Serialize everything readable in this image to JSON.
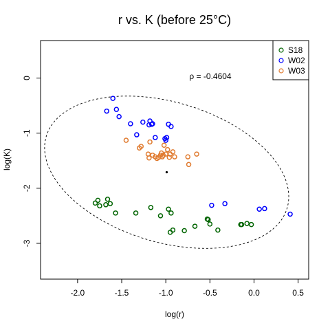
{
  "chart_data": {
    "type": "scatter",
    "title": "r vs. K (before 25°C)",
    "xlabel": "log(r)",
    "ylabel": "log(K)",
    "xlim": [
      -2.42,
      0.62
    ],
    "ylim": [
      -3.65,
      0.68
    ],
    "xticks": [
      -2.0,
      -1.5,
      -1.0,
      -0.5,
      0.0,
      0.5
    ],
    "xtick_labels": [
      "-2.0",
      "-1.5",
      "-1.0",
      "-0.5",
      "0.0",
      "0.5"
    ],
    "yticks": [
      0,
      -1,
      -2,
      -3
    ],
    "ytick_labels": [
      "0",
      "-1",
      "-2",
      "-3"
    ],
    "grid": false,
    "legend": {
      "placement": "top-right"
    },
    "annotation": "ρ = -0.4604",
    "centroid": {
      "x": -0.99,
      "y": -1.71
    },
    "ellipse": {
      "center": [
        -0.99,
        -1.71
      ],
      "semi_axes": [
        1.59,
        1.14
      ],
      "rotation_deg": -44.9
    },
    "series": [
      {
        "name": "S18",
        "color": "#006400",
        "points": [
          [
            -1.8,
            -2.27
          ],
          [
            -1.77,
            -2.22
          ],
          [
            -1.75,
            -2.32
          ],
          [
            -1.68,
            -2.3
          ],
          [
            -1.66,
            -2.2
          ],
          [
            -1.63,
            -2.28
          ],
          [
            -1.57,
            -2.45
          ],
          [
            -1.34,
            -2.45
          ],
          [
            -1.17,
            -2.35
          ],
          [
            -1.06,
            -2.5
          ],
          [
            -0.97,
            -2.38
          ],
          [
            -0.94,
            -2.45
          ],
          [
            -0.92,
            -2.76
          ],
          [
            -0.95,
            -2.8
          ],
          [
            -0.79,
            -2.77
          ],
          [
            -0.67,
            -2.69
          ],
          [
            -0.53,
            -2.56
          ],
          [
            -0.52,
            -2.57
          ],
          [
            -0.5,
            -2.65
          ],
          [
            -0.41,
            -2.76
          ],
          [
            -0.15,
            -2.66
          ],
          [
            -0.14,
            -2.66
          ],
          [
            -0.08,
            -2.64
          ],
          [
            -0.03,
            -2.66
          ]
        ]
      },
      {
        "name": "W02",
        "color": "#0000ff",
        "points": [
          [
            -1.6,
            -0.37
          ],
          [
            -1.56,
            -0.57
          ],
          [
            -1.53,
            -0.7
          ],
          [
            -1.67,
            -0.6
          ],
          [
            -1.4,
            -0.83
          ],
          [
            -1.33,
            -1.03
          ],
          [
            -1.26,
            -0.8
          ],
          [
            -1.19,
            -0.85
          ],
          [
            -1.18,
            -0.78
          ],
          [
            -1.15,
            -0.83
          ],
          [
            -1.16,
            -0.84
          ],
          [
            -1.12,
            -1.08
          ],
          [
            -1.01,
            -1.1
          ],
          [
            -0.99,
            -1.08
          ],
          [
            -1.0,
            -1.13
          ],
          [
            -0.97,
            -0.84
          ],
          [
            -0.94,
            -0.88
          ],
          [
            -0.48,
            -2.31
          ],
          [
            -0.33,
            -2.28
          ],
          [
            0.06,
            -2.38
          ],
          [
            0.12,
            -2.37
          ],
          [
            0.41,
            -2.47
          ]
        ]
      },
      {
        "name": "W03",
        "color": "#e07b30",
        "points": [
          [
            -1.45,
            -1.13
          ],
          [
            -1.3,
            -1.27
          ],
          [
            -1.28,
            -1.24
          ],
          [
            -1.18,
            -1.16
          ],
          [
            -1.2,
            -1.38
          ],
          [
            -1.19,
            -1.45
          ],
          [
            -1.15,
            -1.4
          ],
          [
            -1.12,
            -1.43
          ],
          [
            -1.1,
            -1.46
          ],
          [
            -1.08,
            -1.44
          ],
          [
            -1.06,
            -1.4
          ],
          [
            -1.05,
            -1.36
          ],
          [
            -1.04,
            -1.43
          ],
          [
            -1.03,
            -1.4
          ],
          [
            -1.02,
            -1.22
          ],
          [
            -1.0,
            -1.38
          ],
          [
            -0.98,
            -1.3
          ],
          [
            -0.96,
            -1.44
          ],
          [
            -0.95,
            -1.38
          ],
          [
            -0.92,
            -1.34
          ],
          [
            -0.9,
            -1.43
          ],
          [
            -0.75,
            -1.43
          ],
          [
            -0.65,
            -1.38
          ],
          [
            -0.74,
            -1.57
          ]
        ]
      }
    ]
  }
}
